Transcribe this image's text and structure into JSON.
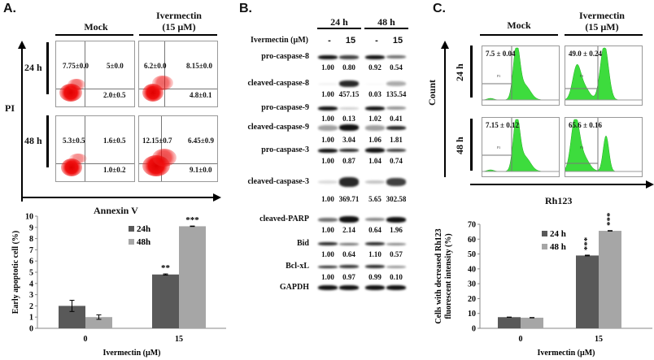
{
  "panels": {
    "a": {
      "letter": "A.",
      "header_mock": "Mock",
      "header_iver_1": "Ivermectin",
      "header_iver_2": "(15 µM)",
      "row_24": "24 h",
      "row_48": "48 h",
      "y_axis": "PI",
      "x_axis": "Annexin V",
      "quadrants": {
        "mock_24": {
          "ul": "7.75±0.0",
          "ur": "5±0.0",
          "lr": "2.0±0.5"
        },
        "iver_24": {
          "ul": "6.2±0.0",
          "ur": "8.15±0.0",
          "lr": "4.8±0.1"
        },
        "mock_48": {
          "ul": "5.3±0.5",
          "ur": "1.6±0.5",
          "lr": "1.0±0.2"
        },
        "iver_48": {
          "ul": "12.15±0.7",
          "ur": "6.45±0.9",
          "lr": "9.1±0.0"
        }
      }
    },
    "b": {
      "letter": "B.",
      "header_24": "24 h",
      "header_48": "48 h",
      "treatment_label": "Ivermectin (µM)",
      "lanes": [
        "-",
        "15",
        "-",
        "15"
      ],
      "rows": [
        {
          "label": "pro-caspase-8",
          "values": [
            "1.00",
            "0.80",
            "0.92",
            "0.54"
          ]
        },
        {
          "label": "cleaved-caspase-8",
          "values": [
            "1.00",
            "457.15",
            "0.03",
            "135.54"
          ]
        },
        {
          "label": "pro-caspase-9",
          "values": [
            "1.00",
            "0.13",
            "1.02",
            "0.41"
          ]
        },
        {
          "label": "cleaved-caspase-9",
          "values": [
            "1.00",
            "3.04",
            "1.06",
            "1.81"
          ]
        },
        {
          "label": "pro-caspase-3",
          "values": [
            "1.00",
            "0.87",
            "1.04",
            "0.74"
          ]
        },
        {
          "label": "cleaved-caspase-3",
          "values": [
            "1.00",
            "369.71",
            "5.65",
            "302.58"
          ]
        },
        {
          "label": "cleaved-PARP",
          "values": [
            "1.00",
            "2.14",
            "0.64",
            "1.96"
          ]
        },
        {
          "label": "Bid",
          "values": [
            "1.00",
            "0.64",
            "1.10",
            "0.57"
          ]
        },
        {
          "label": "Bcl-xL",
          "values": [
            "1.00",
            "0.97",
            "0.99",
            "0.10"
          ]
        },
        {
          "label": "GAPDH",
          "values": []
        }
      ]
    },
    "c": {
      "letter": "C.",
      "header_mock": "Mock",
      "header_iver_1": "Ivermectin",
      "header_iver_2": "(15 µM)",
      "row_24": "24 h",
      "row_48": "48 h",
      "y_axis": "Count",
      "x_axis": "Rh123",
      "gate_values": {
        "mock_24": "7.5 ± 0.04",
        "iver_24": "49.0 ± 0.24",
        "mock_48": "7.15 ± 0.12",
        "iver_48": "65.6 ± 0.16"
      },
      "gate_label": "P3"
    }
  },
  "colors": {
    "bar_24": "#595959",
    "bar_48": "#a6a6a6",
    "histogram": "#3ddc3d",
    "dots": "#e00000"
  },
  "chart_data": [
    {
      "type": "bar",
      "title": "",
      "xlabel": "Ivermectin (µM)",
      "ylabel": "Early apoptotic cell (%)",
      "categories": [
        "0",
        "15"
      ],
      "ylim": [
        0,
        10
      ],
      "yticks": [
        "0",
        "1",
        "2",
        "3",
        "4",
        "5",
        "6",
        "7",
        "8",
        "9",
        "10"
      ],
      "series": [
        {
          "name": "24h",
          "values": [
            2.0,
            4.8
          ],
          "errors": [
            0.5,
            0.05
          ],
          "annotations": [
            "",
            "**"
          ]
        },
        {
          "name": "48h",
          "values": [
            1.0,
            9.1
          ],
          "errors": [
            0.2,
            0.02
          ],
          "annotations": [
            "",
            "***"
          ]
        }
      ],
      "legend": "top-center",
      "grid": false
    },
    {
      "type": "bar",
      "title": "",
      "xlabel": "Ivermectin (µM)",
      "ylabel_1": "Cells with decreased Rh123",
      "ylabel_2": "fluorescent intensity (%)",
      "categories": [
        "0",
        "15"
      ],
      "ylim": [
        0,
        70
      ],
      "yticks": [
        "0",
        "10",
        "20",
        "30",
        "40",
        "50",
        "60",
        "70"
      ],
      "series": [
        {
          "name": "24 h",
          "values": [
            7.5,
            49.0
          ],
          "errors": [
            0.04,
            0.24
          ],
          "annotations": [
            "",
            "***"
          ]
        },
        {
          "name": "48 h",
          "values": [
            7.15,
            65.6
          ],
          "errors": [
            0.12,
            0.16
          ],
          "annotations": [
            "",
            "***"
          ]
        }
      ],
      "legend": "top-center",
      "grid": false
    }
  ]
}
